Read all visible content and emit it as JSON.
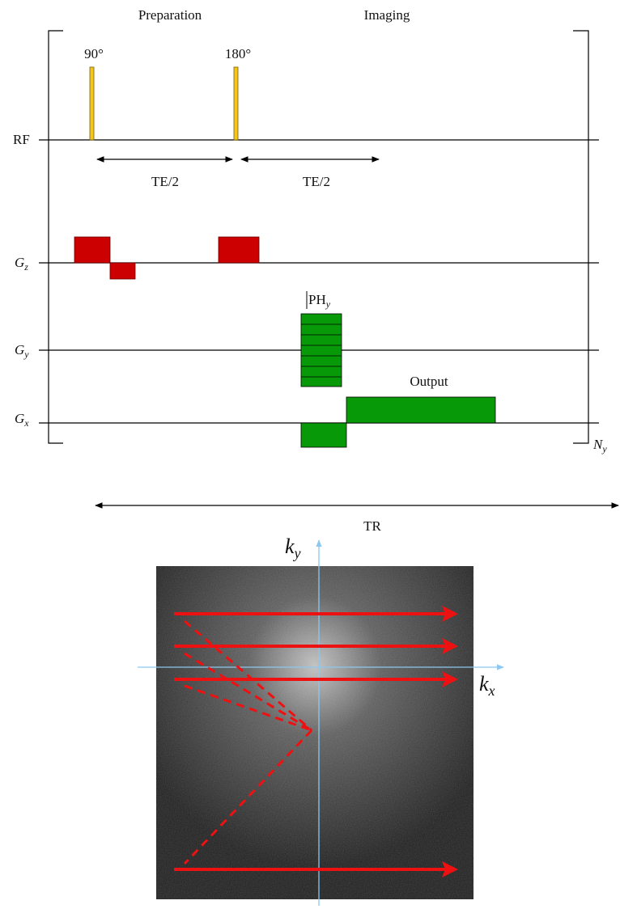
{
  "header": {
    "preparation": "Preparation",
    "imaging": "Imaging"
  },
  "rf": {
    "label": "RF",
    "pulses": [
      "90°",
      "180°"
    ],
    "intervals": [
      "TE/2",
      "TE/2"
    ]
  },
  "gradients": {
    "gz": {
      "symbol": "G",
      "subscript": "z"
    },
    "gy": {
      "symbol": "G",
      "subscript": "y"
    },
    "gx": {
      "symbol": "G",
      "subscript": "x"
    }
  },
  "phase_encode": {
    "symbol": "PH",
    "subscript": "y"
  },
  "readout": "Output",
  "repeat": {
    "symbol": "N",
    "subscript": "y"
  },
  "tr": "TR",
  "kspace": {
    "ky": {
      "symbol": "k",
      "subscript": "y"
    },
    "kx": {
      "symbol": "k",
      "subscript": "x"
    }
  }
}
